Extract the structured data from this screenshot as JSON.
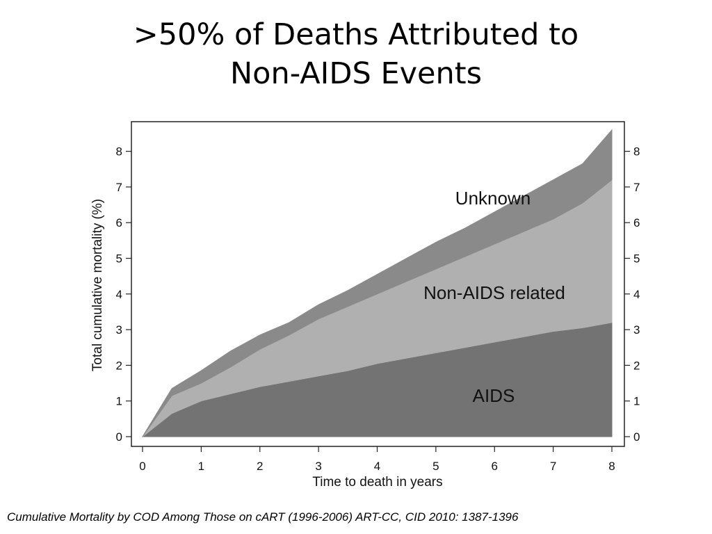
{
  "slide": {
    "title_line1": ">50% of Deaths Attributed to",
    "title_line2": "Non-AIDS Events",
    "caption": "Cumulative Mortality by COD Among Those on cART  (1996-2006)  ART-CC, CID 2010: 1387-1396"
  },
  "chart_data": {
    "type": "area",
    "stacked": true,
    "xlabel": "Time to death in years",
    "ylabel": "Total cumulative mortality (%)",
    "xlim": [
      0,
      8
    ],
    "ylim": [
      0,
      8.6
    ],
    "x_ticks": [
      "0",
      "1",
      "2",
      "3",
      "4",
      "5",
      "6",
      "7",
      "8"
    ],
    "y_ticks": [
      "0",
      "1",
      "2",
      "3",
      "4",
      "5",
      "6",
      "7",
      "8"
    ],
    "right_y_ticks": [
      "0",
      "1",
      "2",
      "3",
      "4",
      "5",
      "6",
      "7",
      "8"
    ],
    "grid": false,
    "x": [
      0,
      0.5,
      1,
      1.5,
      2,
      2.5,
      3,
      3.5,
      4,
      4.5,
      5,
      5.5,
      6,
      6.5,
      7,
      7.5,
      8
    ],
    "series": [
      {
        "name": "AIDS",
        "color": "#737373",
        "values": [
          0,
          0.65,
          1.0,
          1.2,
          1.4,
          1.55,
          1.7,
          1.85,
          2.05,
          2.2,
          2.35,
          2.5,
          2.65,
          2.8,
          2.95,
          3.05,
          3.2
        ]
      },
      {
        "name": "Non-AIDS related",
        "color": "#b0b0b0",
        "values": [
          0,
          0.5,
          0.5,
          0.75,
          1.05,
          1.3,
          1.6,
          1.8,
          1.95,
          2.15,
          2.35,
          2.55,
          2.75,
          2.95,
          3.15,
          3.5,
          4.0
        ]
      },
      {
        "name": "Unknown",
        "color": "#8a8a8a",
        "values": [
          0,
          0.2,
          0.35,
          0.45,
          0.4,
          0.35,
          0.4,
          0.45,
          0.55,
          0.65,
          0.75,
          0.8,
          0.9,
          1.0,
          1.1,
          1.1,
          1.4
        ]
      }
    ]
  }
}
